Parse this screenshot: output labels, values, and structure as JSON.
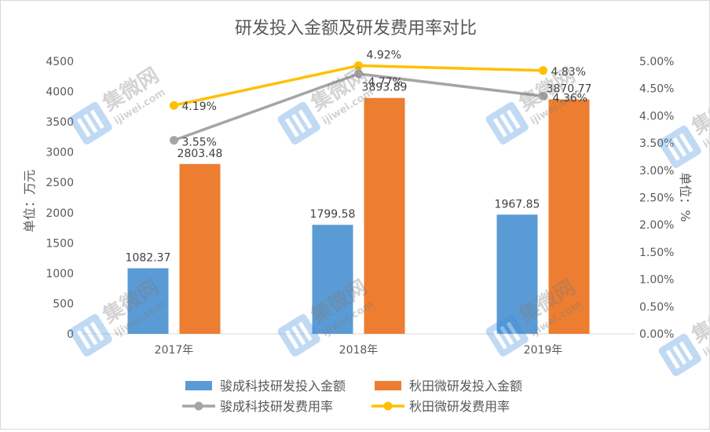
{
  "chart_data": {
    "type": "bar",
    "title": "研发投入金额及研发费用率对比",
    "ylabel": "单位：万元",
    "y2label": "单位：%",
    "categories": [
      "2017年",
      "2018年",
      "2019年"
    ],
    "ylim": [
      0,
      4500
    ],
    "y_ticks": [
      "0",
      "500",
      "1000",
      "1500",
      "2000",
      "2500",
      "3000",
      "3500",
      "4000",
      "4500"
    ],
    "y2lim": [
      0,
      5.0
    ],
    "y2_ticks": [
      "0.00%",
      "0.50%",
      "1.00%",
      "1.50%",
      "2.00%",
      "2.50%",
      "3.00%",
      "3.50%",
      "4.00%",
      "4.50%",
      "5.00%"
    ],
    "grid": false,
    "legend_position": "bottom",
    "bar_series": [
      {
        "name": "骏成科技研发投入金额",
        "color": "#5b9bd5",
        "values": [
          1082.37,
          1799.58,
          1967.85
        ],
        "labels": [
          "1082.37",
          "1799.58",
          "1967.85"
        ]
      },
      {
        "name": "秋田微研发投入金额",
        "color": "#ed7d31",
        "values": [
          2803.48,
          3893.89,
          3870.77
        ],
        "labels": [
          "2803.48",
          "3893.89",
          "3870.77"
        ]
      }
    ],
    "line_series": [
      {
        "name": "骏成科技研发费用率",
        "color": "#a5a5a5",
        "values": [
          3.55,
          4.77,
          4.36
        ],
        "labels": [
          "3.55%",
          "4.77%",
          "4.36%"
        ]
      },
      {
        "name": "秋田微研发费用率",
        "color": "#ffc000",
        "values": [
          4.19,
          4.92,
          4.83
        ],
        "labels": [
          "4.19%",
          "4.92%",
          "4.83%"
        ]
      }
    ]
  },
  "watermark": {
    "brand": "集微网",
    "site": "ijiwei.com"
  }
}
